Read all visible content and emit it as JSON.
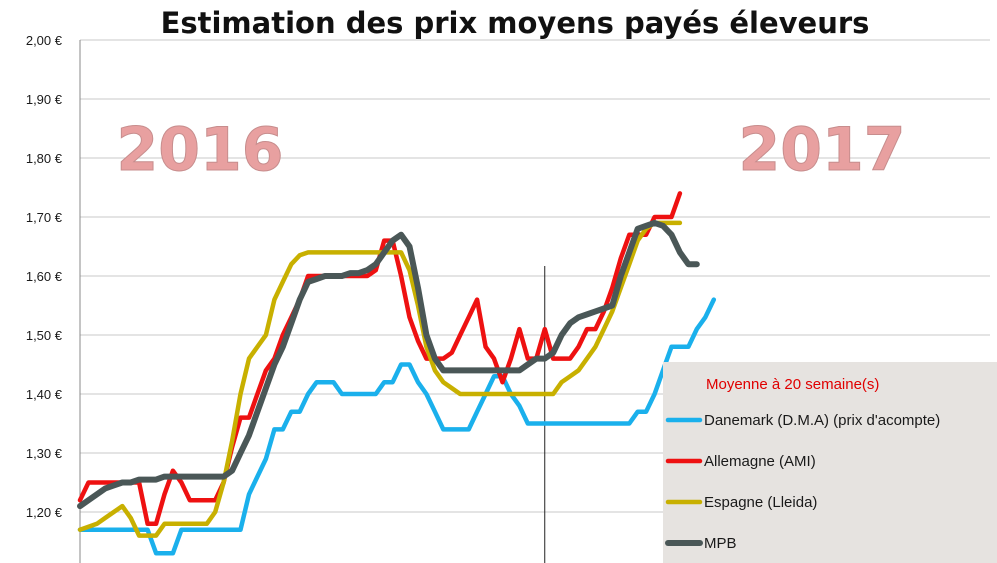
{
  "chart_data": {
    "type": "line",
    "title": "Estimation des prix moyens payés éleveurs",
    "annotations": [
      "2016",
      "2017"
    ],
    "ylim": [
      1.15,
      2.0
    ],
    "y_ticks": [
      "2,00 €",
      "1,90 €",
      "1,80 €",
      "1,70 €",
      "1,60 €",
      "1,50 €",
      "1,40 €",
      "1,30 €",
      "1,20 €"
    ],
    "y_tick_values": [
      2.0,
      1.9,
      1.8,
      1.7,
      1.6,
      1.5,
      1.4,
      1.3,
      1.2
    ],
    "x_count": 76,
    "year_divider_index": 55,
    "grid": true,
    "legend": {
      "placement": "bottom-right",
      "heading": "Moyenne à  20 semaine(s)",
      "background": "#e6e3e0"
    },
    "series": [
      {
        "name": "Danemark (D.M.A) (prix d'acompte)",
        "color": "#1ab0ec",
        "values": [
          1.17,
          1.17,
          1.17,
          1.17,
          1.17,
          1.17,
          1.17,
          1.17,
          1.17,
          1.13,
          1.13,
          1.13,
          1.17,
          1.17,
          1.17,
          1.17,
          1.17,
          1.17,
          1.17,
          1.17,
          1.23,
          1.26,
          1.29,
          1.34,
          1.34,
          1.37,
          1.37,
          1.4,
          1.42,
          1.42,
          1.42,
          1.4,
          1.4,
          1.4,
          1.4,
          1.4,
          1.42,
          1.42,
          1.45,
          1.45,
          1.42,
          1.4,
          1.37,
          1.34,
          1.34,
          1.34,
          1.34,
          1.37,
          1.4,
          1.43,
          1.43,
          1.4,
          1.38,
          1.35,
          1.35,
          1.35,
          1.35,
          1.35,
          1.35,
          1.35,
          1.35,
          1.35,
          1.35,
          1.35,
          1.35,
          1.35,
          1.37,
          1.37,
          1.4,
          1.44,
          1.48,
          1.48,
          1.48,
          1.51,
          1.53,
          1.56
        ]
      },
      {
        "name": "Allemagne (AMI)",
        "color": "#ee1111",
        "values": [
          1.22,
          1.25,
          1.25,
          1.25,
          1.25,
          1.25,
          1.25,
          1.25,
          1.18,
          1.18,
          1.23,
          1.27,
          1.25,
          1.22,
          1.22,
          1.22,
          1.22,
          1.25,
          1.31,
          1.36,
          1.36,
          1.4,
          1.44,
          1.46,
          1.5,
          1.53,
          1.56,
          1.6,
          1.6,
          1.6,
          1.6,
          1.6,
          1.6,
          1.6,
          1.6,
          1.61,
          1.66,
          1.66,
          1.6,
          1.53,
          1.49,
          1.46,
          1.46,
          1.46,
          1.47,
          1.5,
          1.53,
          1.56,
          1.48,
          1.46,
          1.42,
          1.46,
          1.51,
          1.46,
          1.46,
          1.51,
          1.46,
          1.46,
          1.46,
          1.48,
          1.51,
          1.51,
          1.54,
          1.58,
          1.63,
          1.67,
          1.67,
          1.67,
          1.7,
          1.7,
          1.7,
          1.74
        ]
      },
      {
        "name": "Espagne (Lleida)",
        "color": "#c8b000",
        "values": [
          1.17,
          1.175,
          1.18,
          1.19,
          1.2,
          1.21,
          1.19,
          1.16,
          1.16,
          1.16,
          1.18,
          1.18,
          1.18,
          1.18,
          1.18,
          1.18,
          1.2,
          1.25,
          1.32,
          1.4,
          1.46,
          1.48,
          1.5,
          1.56,
          1.59,
          1.62,
          1.635,
          1.64,
          1.64,
          1.64,
          1.64,
          1.64,
          1.64,
          1.64,
          1.64,
          1.64,
          1.64,
          1.64,
          1.64,
          1.61,
          1.55,
          1.48,
          1.44,
          1.42,
          1.41,
          1.4,
          1.4,
          1.4,
          1.4,
          1.4,
          1.4,
          1.4,
          1.4,
          1.4,
          1.4,
          1.4,
          1.4,
          1.42,
          1.43,
          1.44,
          1.46,
          1.48,
          1.51,
          1.54,
          1.58,
          1.62,
          1.66,
          1.68,
          1.69,
          1.69,
          1.69,
          1.69
        ]
      },
      {
        "name": "MPB",
        "color": "#4a5757",
        "values": [
          1.21,
          1.22,
          1.23,
          1.24,
          1.245,
          1.25,
          1.25,
          1.255,
          1.255,
          1.255,
          1.26,
          1.26,
          1.26,
          1.26,
          1.26,
          1.26,
          1.26,
          1.26,
          1.27,
          1.3,
          1.33,
          1.37,
          1.41,
          1.45,
          1.48,
          1.52,
          1.56,
          1.59,
          1.595,
          1.6,
          1.6,
          1.6,
          1.605,
          1.605,
          1.61,
          1.62,
          1.64,
          1.66,
          1.67,
          1.65,
          1.58,
          1.5,
          1.46,
          1.44,
          1.44,
          1.44,
          1.44,
          1.44,
          1.44,
          1.44,
          1.44,
          1.44,
          1.44,
          1.45,
          1.46,
          1.46,
          1.47,
          1.5,
          1.52,
          1.53,
          1.535,
          1.54,
          1.545,
          1.55,
          1.6,
          1.64,
          1.68,
          1.685,
          1.69,
          1.685,
          1.67,
          1.64,
          1.62,
          1.62
        ]
      }
    ]
  }
}
